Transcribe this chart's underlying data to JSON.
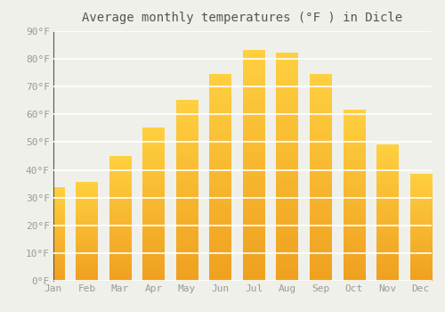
{
  "title": "Average monthly temperatures (°F ) in Dicle",
  "months": [
    "Jan",
    "Feb",
    "Mar",
    "Apr",
    "May",
    "Jun",
    "Jul",
    "Aug",
    "Sep",
    "Oct",
    "Nov",
    "Dec"
  ],
  "values": [
    33.5,
    35.5,
    45.0,
    55.0,
    65.0,
    74.5,
    83.0,
    82.0,
    74.5,
    61.5,
    49.0,
    38.5
  ],
  "bar_color_bottom": "#F0A020",
  "bar_color_top": "#FFD040",
  "ylim": [
    0,
    90
  ],
  "ytick_step": 10,
  "background_color": "#f0f0eb",
  "grid_color": "#ffffff",
  "title_fontsize": 10,
  "tick_fontsize": 8,
  "font_family": "monospace",
  "tick_color": "#999999",
  "title_color": "#555555",
  "spine_color": "#555555"
}
